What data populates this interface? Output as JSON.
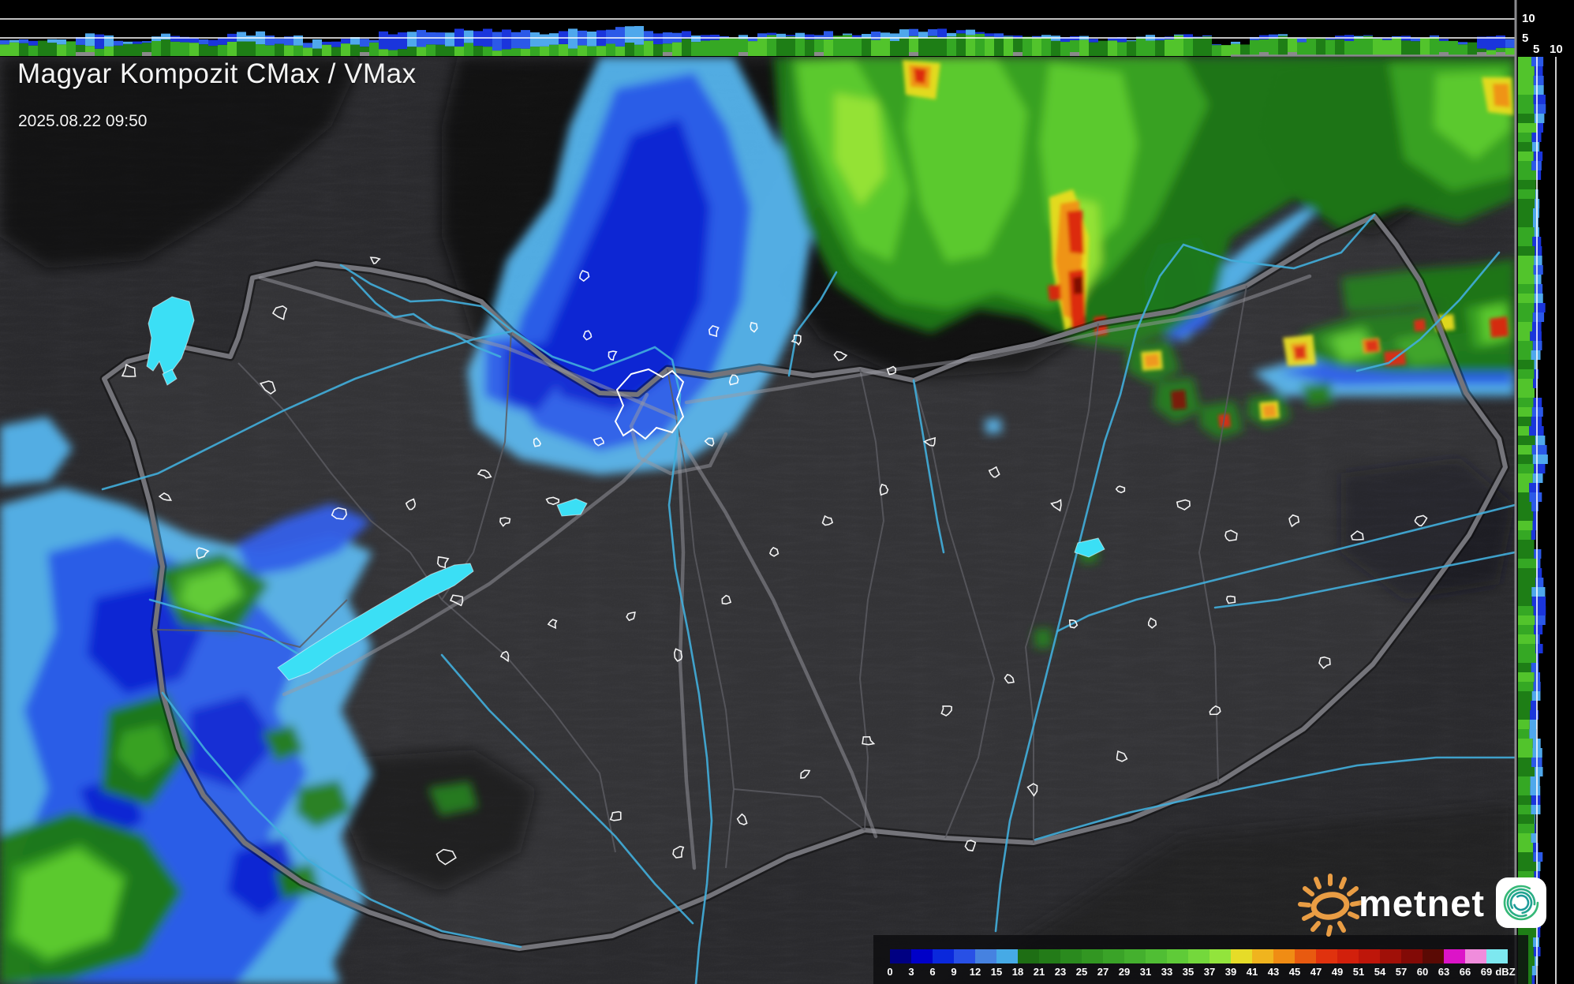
{
  "header": {
    "title": "Magyar Kompozit CMax / VMax",
    "timestamp": "2025.08.22 09:50"
  },
  "scale_axes": {
    "top_strip_labels": [
      "10",
      "5"
    ],
    "right_strip_labels": [
      "5",
      "10"
    ]
  },
  "legend": {
    "unit_label": "dBZ",
    "ticks": [
      "0",
      "3",
      "6",
      "9",
      "12",
      "15",
      "18",
      "21",
      "23",
      "25",
      "27",
      "29",
      "31",
      "33",
      "35",
      "37",
      "39",
      "41",
      "43",
      "45",
      "47",
      "49",
      "51",
      "54",
      "57",
      "60",
      "63",
      "66",
      "69"
    ],
    "cell_colors": [
      "#000082",
      "#0000C8",
      "#0A28DC",
      "#2850E6",
      "#4682E0",
      "#46AAE6",
      "#1E6E14",
      "#237B18",
      "#2A8A1E",
      "#329622",
      "#3AA328",
      "#44B02E",
      "#50BE34",
      "#5FCB38",
      "#74D83C",
      "#92E43C",
      "#E6DC28",
      "#F0B41E",
      "#F08C14",
      "#E85A10",
      "#E0320E",
      "#D2200C",
      "#BE160A",
      "#A01008",
      "#820A06",
      "#5A0A04",
      "#DC14C8",
      "#F08CDC",
      "#7DE8F0"
    ]
  },
  "branding": {
    "logo_text": "metnet"
  },
  "colors": {
    "terrain_bg": "#37373B",
    "mountain": "#0D0D11",
    "country_border": "#74747A",
    "county_border": "#5A5A60",
    "motorway": "#9A9AA2",
    "river": "#41AEDC",
    "lake": "#3BDFF5",
    "city_outline": "#FFFFFF",
    "strip_background": "#000000",
    "gridline": "#FFFFFF",
    "precip": {
      "light_blue": "#55B5EE",
      "blue": "#2B59E8",
      "dark_blue": "#0F23D2",
      "green_dark": "#1E7A14",
      "green": "#3BA424",
      "green_bright": "#5ECC30",
      "green_light": "#98E436",
      "yellow": "#E9DC20",
      "orange": "#F09014",
      "red": "#DC2410",
      "dark_red": "#7A0806"
    }
  },
  "profiles": {
    "top_km": [
      [
        3,
        4
      ],
      [
        3.5,
        4.5
      ],
      [
        2.5,
        5.5
      ],
      [
        3,
        4
      ],
      [
        4,
        5.5
      ],
      [
        3,
        4.5
      ],
      [
        3.5,
        6
      ],
      [
        3,
        5
      ],
      [
        2.5,
        4
      ],
      [
        3,
        4.5
      ],
      [
        2,
        6
      ],
      [
        2.5,
        6.5
      ],
      [
        3,
        7
      ],
      [
        2,
        6.5
      ],
      [
        3,
        6
      ],
      [
        2.5,
        7
      ],
      [
        3,
        7.5
      ],
      [
        3.5,
        6.5
      ],
      [
        4,
        6
      ],
      [
        4.5,
        5.5
      ],
      [
        5,
        6
      ],
      [
        4.5,
        6
      ],
      [
        5,
        5.5
      ],
      [
        4.5,
        6.5
      ],
      [
        5,
        7
      ],
      [
        5.5,
        6.5
      ],
      [
        5,
        5.5
      ],
      [
        4.5,
        5
      ],
      [
        4,
        5
      ],
      [
        4,
        4.5
      ],
      [
        4.5,
        5
      ],
      [
        5,
        5.5
      ],
      [
        3,
        3.5
      ],
      [
        4.8,
        5.2
      ],
      [
        4.2,
        4.5
      ],
      [
        4.5,
        5
      ],
      [
        4.8,
        5.5
      ],
      [
        4.5,
        5
      ],
      [
        3.5,
        4
      ],
      [
        2,
        5
      ]
    ],
    "right_km": [
      [
        4,
        6.5
      ],
      [
        4.5,
        7
      ],
      [
        4,
        6
      ],
      [
        4.5,
        5.5
      ],
      [
        4,
        6
      ],
      [
        4.5,
        6.5
      ],
      [
        4,
        7
      ],
      [
        3.5,
        6
      ],
      [
        4,
        5
      ],
      [
        3.5,
        6.5
      ],
      [
        4,
        7.5
      ],
      [
        3.5,
        6
      ],
      [
        4,
        5
      ],
      [
        4.5,
        6.5
      ],
      [
        4,
        7
      ],
      [
        4.5,
        6
      ],
      [
        4,
        5.5
      ],
      [
        3.5,
        5
      ],
      [
        4,
        6
      ],
      [
        3.5,
        5.5
      ],
      [
        4,
        5
      ],
      [
        4.5,
        6
      ],
      [
        4,
        6.5
      ],
      [
        4.5,
        5.5
      ],
      [
        4,
        5
      ]
    ]
  }
}
